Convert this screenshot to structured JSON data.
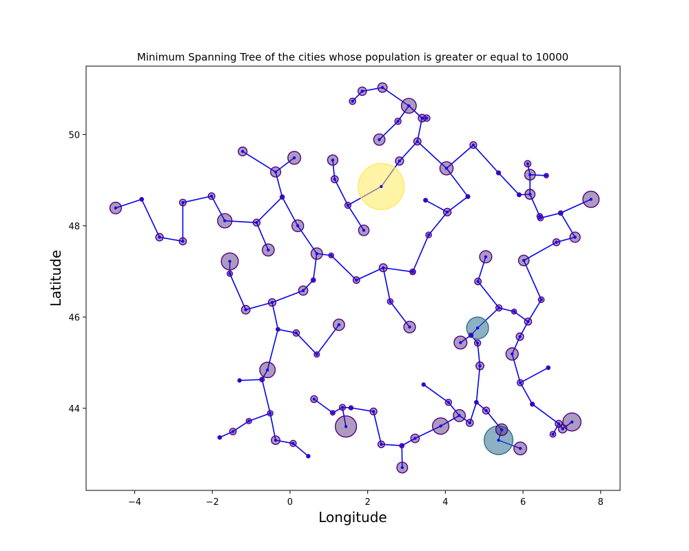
{
  "chart_data": {
    "type": "scatter",
    "title": "Minimum Spanning Tree of the cities whose population is greater or equal to 10000",
    "xlabel": "Longitude",
    "ylabel": "Latitude",
    "xlim": [
      -5.25,
      8.5
    ],
    "ylim": [
      42.2,
      51.5
    ],
    "x_ticks": [
      -4,
      -2,
      0,
      2,
      4,
      6,
      8
    ],
    "y_ticks": [
      44,
      46,
      48,
      50
    ],
    "x_tick_labels": [
      "−4",
      "−2",
      "0",
      "2",
      "4",
      "6",
      "8"
    ],
    "y_tick_labels": [
      "44",
      "46",
      "48",
      "50"
    ],
    "grid": false,
    "legend": "none",
    "colors": {
      "edge": "#0000ee",
      "city_fill": "#4b1f6f",
      "city_edge": "#4b0082",
      "large_city_paris": "#ffe95c",
      "large_city_marseille": "#2f6f8f",
      "large_city_lyon": "#2f6f8f",
      "node_dot": "#1a00ff"
    },
    "large_cities": [
      {
        "x": 2.35,
        "y": 48.86,
        "size": 2200000.0,
        "color_key": "large_city_paris"
      },
      {
        "x": 5.37,
        "y": 43.3,
        "size": 860000.0,
        "color_key": "large_city_marseille"
      },
      {
        "x": 4.83,
        "y": 45.76,
        "size": 500000.0,
        "color_key": "large_city_lyon"
      }
    ],
    "cities": [
      {
        "x": -4.49,
        "y": 48.39,
        "size": 140000
      },
      {
        "x": -1.68,
        "y": 48.11,
        "size": 215000
      },
      {
        "x": -1.55,
        "y": 47.22,
        "size": 300000
      },
      {
        "x": -0.56,
        "y": 47.47,
        "size": 150000
      },
      {
        "x": 0.2,
        "y": 48.0,
        "size": 143000
      },
      {
        "x": 0.69,
        "y": 47.39,
        "size": 136000
      },
      {
        "x": 1.1,
        "y": 49.44,
        "size": 110000
      },
      {
        "x": 0.11,
        "y": 49.49,
        "size": 172000
      },
      {
        "x": -0.37,
        "y": 49.18,
        "size": 108000
      },
      {
        "x": 3.06,
        "y": 50.63,
        "size": 230000
      },
      {
        "x": 2.3,
        "y": 49.89,
        "size": 133000
      },
      {
        "x": 4.03,
        "y": 49.26,
        "size": 182000
      },
      {
        "x": 1.9,
        "y": 47.9,
        "size": 114000
      },
      {
        "x": 7.75,
        "y": 48.58,
        "size": 275000
      },
      {
        "x": 6.18,
        "y": 49.12,
        "size": 118000
      },
      {
        "x": 6.18,
        "y": 48.69,
        "size": 104000
      },
      {
        "x": 7.34,
        "y": 47.75,
        "size": 110000
      },
      {
        "x": 5.04,
        "y": 47.32,
        "size": 155000
      },
      {
        "x": 6.02,
        "y": 47.24,
        "size": 117000
      },
      {
        "x": 5.72,
        "y": 45.19,
        "size": 158000
      },
      {
        "x": 4.39,
        "y": 45.44,
        "size": 172000
      },
      {
        "x": 3.08,
        "y": 45.78,
        "size": 141000
      },
      {
        "x": 1.26,
        "y": 45.83,
        "size": 134000
      },
      {
        "x": 0.34,
        "y": 46.58,
        "size": 88000
      },
      {
        "x": -0.58,
        "y": 44.84,
        "size": 250000
      },
      {
        "x": 1.44,
        "y": 43.6,
        "size": 470000
      },
      {
        "x": 3.88,
        "y": 43.61,
        "size": 280000
      },
      {
        "x": 7.26,
        "y": 43.7,
        "size": 340000
      },
      {
        "x": 5.93,
        "y": 43.12,
        "size": 170000
      },
      {
        "x": 4.36,
        "y": 43.84,
        "size": 150000
      },
      {
        "x": 2.89,
        "y": 42.7,
        "size": 120000
      },
      {
        "x": -0.37,
        "y": 43.3,
        "size": 77000
      },
      {
        "x": -1.47,
        "y": 43.49,
        "size": 45000
      },
      {
        "x": 0.08,
        "y": 43.23,
        "size": 40000
      },
      {
        "x": 2.35,
        "y": 43.21,
        "size": 46000
      },
      {
        "x": 3.22,
        "y": 43.34,
        "size": 75000
      },
      {
        "x": 1.61,
        "y": 50.73,
        "size": 42000
      },
      {
        "x": 1.86,
        "y": 50.95,
        "size": 73000
      },
      {
        "x": 2.38,
        "y": 51.03,
        "size": 92000
      },
      {
        "x": -3.36,
        "y": 47.75,
        "size": 58000
      },
      {
        "x": -2.76,
        "y": 47.66,
        "size": 53000
      },
      {
        "x": -2.76,
        "y": 48.51,
        "size": 45000
      },
      {
        "x": -1.14,
        "y": 46.16,
        "size": 76000
      },
      {
        "x": -0.46,
        "y": 46.32,
        "size": 59000
      },
      {
        "x": 0.16,
        "y": 45.65,
        "size": 42000
      },
      {
        "x": 1.71,
        "y": 46.81,
        "size": 45000
      },
      {
        "x": 2.4,
        "y": 47.08,
        "size": 66000
      },
      {
        "x": 3.16,
        "y": 46.99,
        "size": 33000
      },
      {
        "x": 4.84,
        "y": 46.78,
        "size": 45000
      },
      {
        "x": 4.83,
        "y": 45.43,
        "size": 40000
      },
      {
        "x": 5.92,
        "y": 45.57,
        "size": 58000
      },
      {
        "x": 6.13,
        "y": 45.9,
        "size": 52000
      },
      {
        "x": 4.89,
        "y": 44.93,
        "size": 64000
      },
      {
        "x": 5.05,
        "y": 43.95,
        "size": 50000
      },
      {
        "x": 6.92,
        "y": 43.66,
        "size": 50000
      },
      {
        "x": 7.02,
        "y": 43.55,
        "size": 74000
      },
      {
        "x": 6.77,
        "y": 43.43,
        "size": 35000
      },
      {
        "x": 4.63,
        "y": 43.68,
        "size": 52000
      },
      {
        "x": 5.45,
        "y": 43.53,
        "size": 143000
      },
      {
        "x": 6.12,
        "y": 49.36,
        "size": 43000
      },
      {
        "x": 6.45,
        "y": 48.17,
        "size": 33000
      },
      {
        "x": 6.86,
        "y": 47.64,
        "size": 50000
      },
      {
        "x": 4.72,
        "y": 49.77,
        "size": 47000
      },
      {
        "x": 3.28,
        "y": 49.85,
        "size": 55000
      },
      {
        "x": 2.82,
        "y": 49.42,
        "size": 69000
      },
      {
        "x": 3.4,
        "y": 50.36,
        "size": 60000
      },
      {
        "x": 3.52,
        "y": 50.36,
        "size": 43000
      },
      {
        "x": 2.78,
        "y": 50.29,
        "size": 41000
      },
      {
        "x": 1.15,
        "y": 49.02,
        "size": 52000
      },
      {
        "x": 1.49,
        "y": 48.45,
        "size": 39000
      },
      {
        "x": 3.57,
        "y": 47.8,
        "size": 34000
      },
      {
        "x": 3.16,
        "y": 46.99,
        "size": 33000
      },
      {
        "x": -1.55,
        "y": 46.95,
        "size": 30000
      },
      {
        "x": 1.06,
        "y": 47.35,
        "size": 25000
      },
      {
        "x": -0.2,
        "y": 48.63,
        "size": 19000
      },
      {
        "x": -3.82,
        "y": 48.58,
        "size": 14000
      },
      {
        "x": -2.02,
        "y": 48.65,
        "size": 46000
      },
      {
        "x": -1.22,
        "y": 49.63,
        "size": 80000
      },
      {
        "x": 4.05,
        "y": 48.3,
        "size": 60000
      },
      {
        "x": 2.58,
        "y": 46.34,
        "size": 33000
      },
      {
        "x": 0.69,
        "y": 45.18,
        "size": 29000
      },
      {
        "x": -0.72,
        "y": 44.63,
        "size": 22000
      },
      {
        "x": 0.62,
        "y": 44.2,
        "size": 48000
      },
      {
        "x": 1.35,
        "y": 44.02,
        "size": 38000
      },
      {
        "x": 2.15,
        "y": 43.93,
        "size": 48000
      },
      {
        "x": 1.1,
        "y": 43.9,
        "size": 22000
      },
      {
        "x": 0.47,
        "y": 42.95,
        "size": 12000
      },
      {
        "x": 1.57,
        "y": 44.01,
        "size": 18000
      },
      {
        "x": 2.88,
        "y": 43.18,
        "size": 20000
      },
      {
        "x": 3.44,
        "y": 44.52,
        "size": 12000
      },
      {
        "x": 4.08,
        "y": 44.13,
        "size": 40000
      },
      {
        "x": 4.8,
        "y": 44.13,
        "size": 14000
      },
      {
        "x": 5.93,
        "y": 44.56,
        "size": 40000
      },
      {
        "x": 6.24,
        "y": 44.09,
        "size": 17000
      },
      {
        "x": 6.65,
        "y": 44.89,
        "size": 14000
      },
      {
        "x": 5.77,
        "y": 46.12,
        "size": 26000
      },
      {
        "x": 6.47,
        "y": 46.38,
        "size": 34000
      },
      {
        "x": 4.66,
        "y": 45.6,
        "size": 18000
      },
      {
        "x": 5.38,
        "y": 46.2,
        "size": 40000
      },
      {
        "x": 5.9,
        "y": 48.68,
        "size": 16000
      },
      {
        "x": 6.43,
        "y": 48.21,
        "size": 32000
      },
      {
        "x": 6.97,
        "y": 48.28,
        "size": 21000
      },
      {
        "x": 6.6,
        "y": 49.1,
        "size": 20000
      },
      {
        "x": 5.37,
        "y": 49.16,
        "size": 17000
      },
      {
        "x": 4.58,
        "y": 48.64,
        "size": 16000
      },
      {
        "x": 3.49,
        "y": 48.56,
        "size": 15000
      },
      {
        "x": -0.86,
        "y": 48.07,
        "size": 50000
      },
      {
        "x": 0.6,
        "y": 46.81,
        "size": 20000
      },
      {
        "x": -0.31,
        "y": 45.73,
        "size": 14000
      },
      {
        "x": -1.3,
        "y": 44.61,
        "size": 11000
      },
      {
        "x": -1.06,
        "y": 43.72,
        "size": 30000
      },
      {
        "x": -1.81,
        "y": 43.36,
        "size": 13000
      },
      {
        "x": -0.51,
        "y": 43.89,
        "size": 32000
      }
    ]
  }
}
